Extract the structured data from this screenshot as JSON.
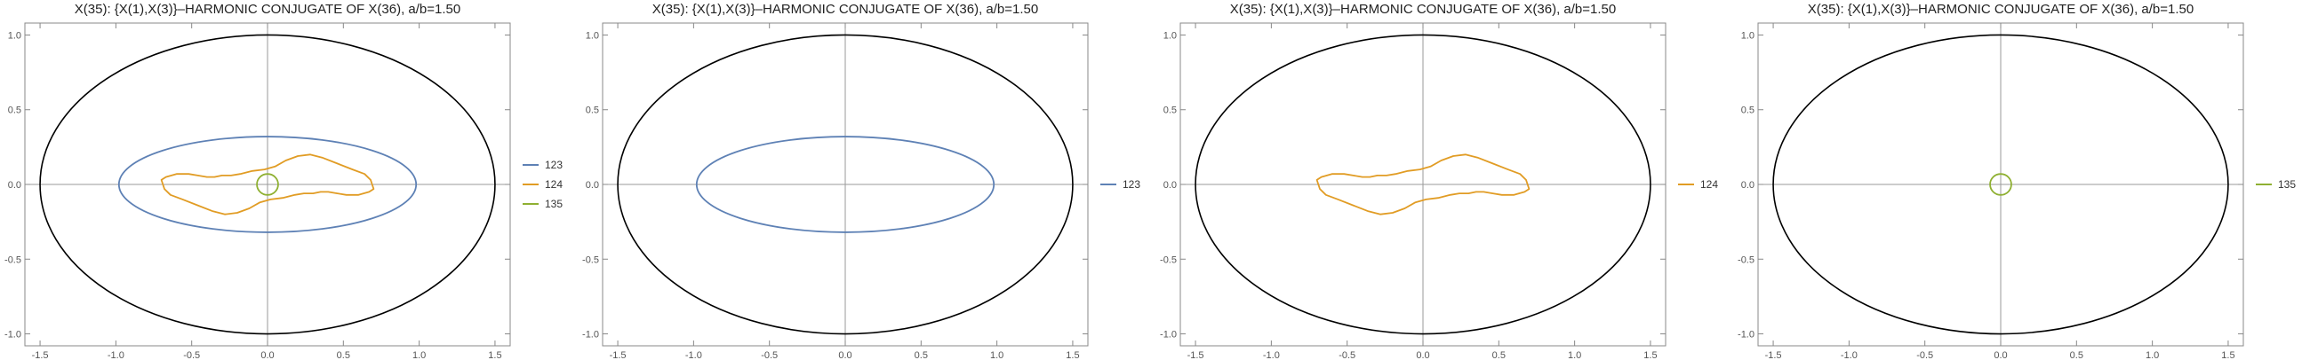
{
  "chart_data": [
    {
      "type": "line",
      "title": "X(35): {X(1),X(3)}–HARMONIC CONJUGATE OF X(36), a/b=1.50",
      "xlim": [
        -1.6,
        1.6
      ],
      "ylim": [
        -1.08,
        1.08
      ],
      "xticks": [
        "-1.5",
        "-1.0",
        "-0.5",
        "0.0",
        "0.5",
        "1.0",
        "1.5"
      ],
      "yticks": [
        "-1.0",
        "-0.5",
        "0.0",
        "0.5",
        "1.0"
      ],
      "grid": false,
      "legend": "right",
      "reference": {
        "name": "",
        "color": "#000000",
        "shape": "ellipse",
        "rx": 1.5,
        "ry": 1.0
      },
      "series": [
        {
          "name": "123",
          "color": "#5e81b5",
          "shape": "ellipse",
          "cx": 0,
          "cy": 0,
          "rx": 0.98,
          "ry": 0.32
        },
        {
          "name": "124",
          "color": "#e19c24",
          "shape": "curve",
          "x": [
            0.7,
            0.67,
            0.6,
            0.52,
            0.46,
            0.4,
            0.35,
            0.3,
            0.24,
            0.18,
            0.1,
            0.02,
            -0.05,
            -0.12,
            -0.2,
            -0.28,
            -0.36,
            -0.46,
            -0.56,
            -0.64,
            -0.68,
            -0.7,
            -0.67,
            -0.6,
            -0.52,
            -0.46,
            -0.4,
            -0.35,
            -0.3,
            -0.24,
            -0.18,
            -0.1,
            -0.02,
            0.05,
            0.12,
            0.2,
            0.28,
            0.36,
            0.46,
            0.56,
            0.64,
            0.68,
            0.7
          ],
          "y": [
            -0.03,
            -0.05,
            -0.07,
            -0.07,
            -0.06,
            -0.05,
            -0.05,
            -0.06,
            -0.06,
            -0.07,
            -0.09,
            -0.1,
            -0.12,
            -0.16,
            -0.19,
            -0.2,
            -0.18,
            -0.14,
            -0.1,
            -0.07,
            -0.03,
            0.03,
            0.05,
            0.07,
            0.07,
            0.06,
            0.05,
            0.05,
            0.06,
            0.06,
            0.07,
            0.09,
            0.1,
            0.12,
            0.16,
            0.19,
            0.2,
            0.18,
            0.14,
            0.1,
            0.07,
            0.03,
            -0.03
          ]
        },
        {
          "name": "135",
          "color": "#8fb032",
          "shape": "ellipse",
          "cx": 0,
          "cy": 0,
          "rx": 0.07,
          "ry": 0.07
        }
      ]
    },
    {
      "type": "line",
      "title": "X(35): {X(1),X(3)}–HARMONIC CONJUGATE OF X(36), a/b=1.50",
      "xlim": [
        -1.6,
        1.6
      ],
      "ylim": [
        -1.08,
        1.08
      ],
      "xticks": [
        "-1.5",
        "-1.0",
        "-0.5",
        "0.0",
        "0.5",
        "1.0",
        "1.5"
      ],
      "yticks": [
        "-1.0",
        "-0.5",
        "0.0",
        "0.5",
        "1.0"
      ],
      "grid": false,
      "legend": "right",
      "reference": {
        "name": "",
        "color": "#000000",
        "shape": "ellipse",
        "rx": 1.5,
        "ry": 1.0
      },
      "series": [
        {
          "name": "123",
          "color": "#5e81b5",
          "shape": "ellipse",
          "cx": 0,
          "cy": 0,
          "rx": 0.98,
          "ry": 0.32
        }
      ]
    },
    {
      "type": "line",
      "title": "X(35): {X(1),X(3)}–HARMONIC CONJUGATE OF X(36), a/b=1.50",
      "xlim": [
        -1.6,
        1.6
      ],
      "ylim": [
        -1.08,
        1.08
      ],
      "xticks": [
        "-1.5",
        "-1.0",
        "-0.5",
        "0.0",
        "0.5",
        "1.0",
        "1.5"
      ],
      "yticks": [
        "-1.0",
        "-0.5",
        "0.0",
        "0.5",
        "1.0"
      ],
      "grid": false,
      "legend": "right",
      "reference": {
        "name": "",
        "color": "#000000",
        "shape": "ellipse",
        "rx": 1.5,
        "ry": 1.0
      },
      "series": [
        {
          "name": "124",
          "color": "#e19c24",
          "shape": "curve",
          "x": [
            0.7,
            0.67,
            0.6,
            0.52,
            0.46,
            0.4,
            0.35,
            0.3,
            0.24,
            0.18,
            0.1,
            0.02,
            -0.05,
            -0.12,
            -0.2,
            -0.28,
            -0.36,
            -0.46,
            -0.56,
            -0.64,
            -0.68,
            -0.7,
            -0.67,
            -0.6,
            -0.52,
            -0.46,
            -0.4,
            -0.35,
            -0.3,
            -0.24,
            -0.18,
            -0.1,
            -0.02,
            0.05,
            0.12,
            0.2,
            0.28,
            0.36,
            0.46,
            0.56,
            0.64,
            0.68,
            0.7
          ],
          "y": [
            -0.03,
            -0.05,
            -0.07,
            -0.07,
            -0.06,
            -0.05,
            -0.05,
            -0.06,
            -0.06,
            -0.07,
            -0.09,
            -0.1,
            -0.12,
            -0.16,
            -0.19,
            -0.2,
            -0.18,
            -0.14,
            -0.1,
            -0.07,
            -0.03,
            0.03,
            0.05,
            0.07,
            0.07,
            0.06,
            0.05,
            0.05,
            0.06,
            0.06,
            0.07,
            0.09,
            0.1,
            0.12,
            0.16,
            0.19,
            0.2,
            0.18,
            0.14,
            0.1,
            0.07,
            0.03,
            -0.03
          ]
        }
      ]
    },
    {
      "type": "line",
      "title": "X(35): {X(1),X(3)}–HARMONIC CONJUGATE OF X(36), a/b=1.50",
      "xlim": [
        -1.6,
        1.6
      ],
      "ylim": [
        -1.08,
        1.08
      ],
      "xticks": [
        "-1.5",
        "-1.0",
        "-0.5",
        "0.0",
        "0.5",
        "1.0",
        "1.5"
      ],
      "yticks": [
        "-1.0",
        "-0.5",
        "0.0",
        "0.5",
        "1.0"
      ],
      "grid": false,
      "legend": "right",
      "reference": {
        "name": "",
        "color": "#000000",
        "shape": "ellipse",
        "rx": 1.5,
        "ry": 1.0
      },
      "series": [
        {
          "name": "135",
          "color": "#8fb032",
          "shape": "ellipse",
          "cx": 0,
          "cy": 0,
          "rx": 0.07,
          "ry": 0.07
        }
      ]
    }
  ]
}
